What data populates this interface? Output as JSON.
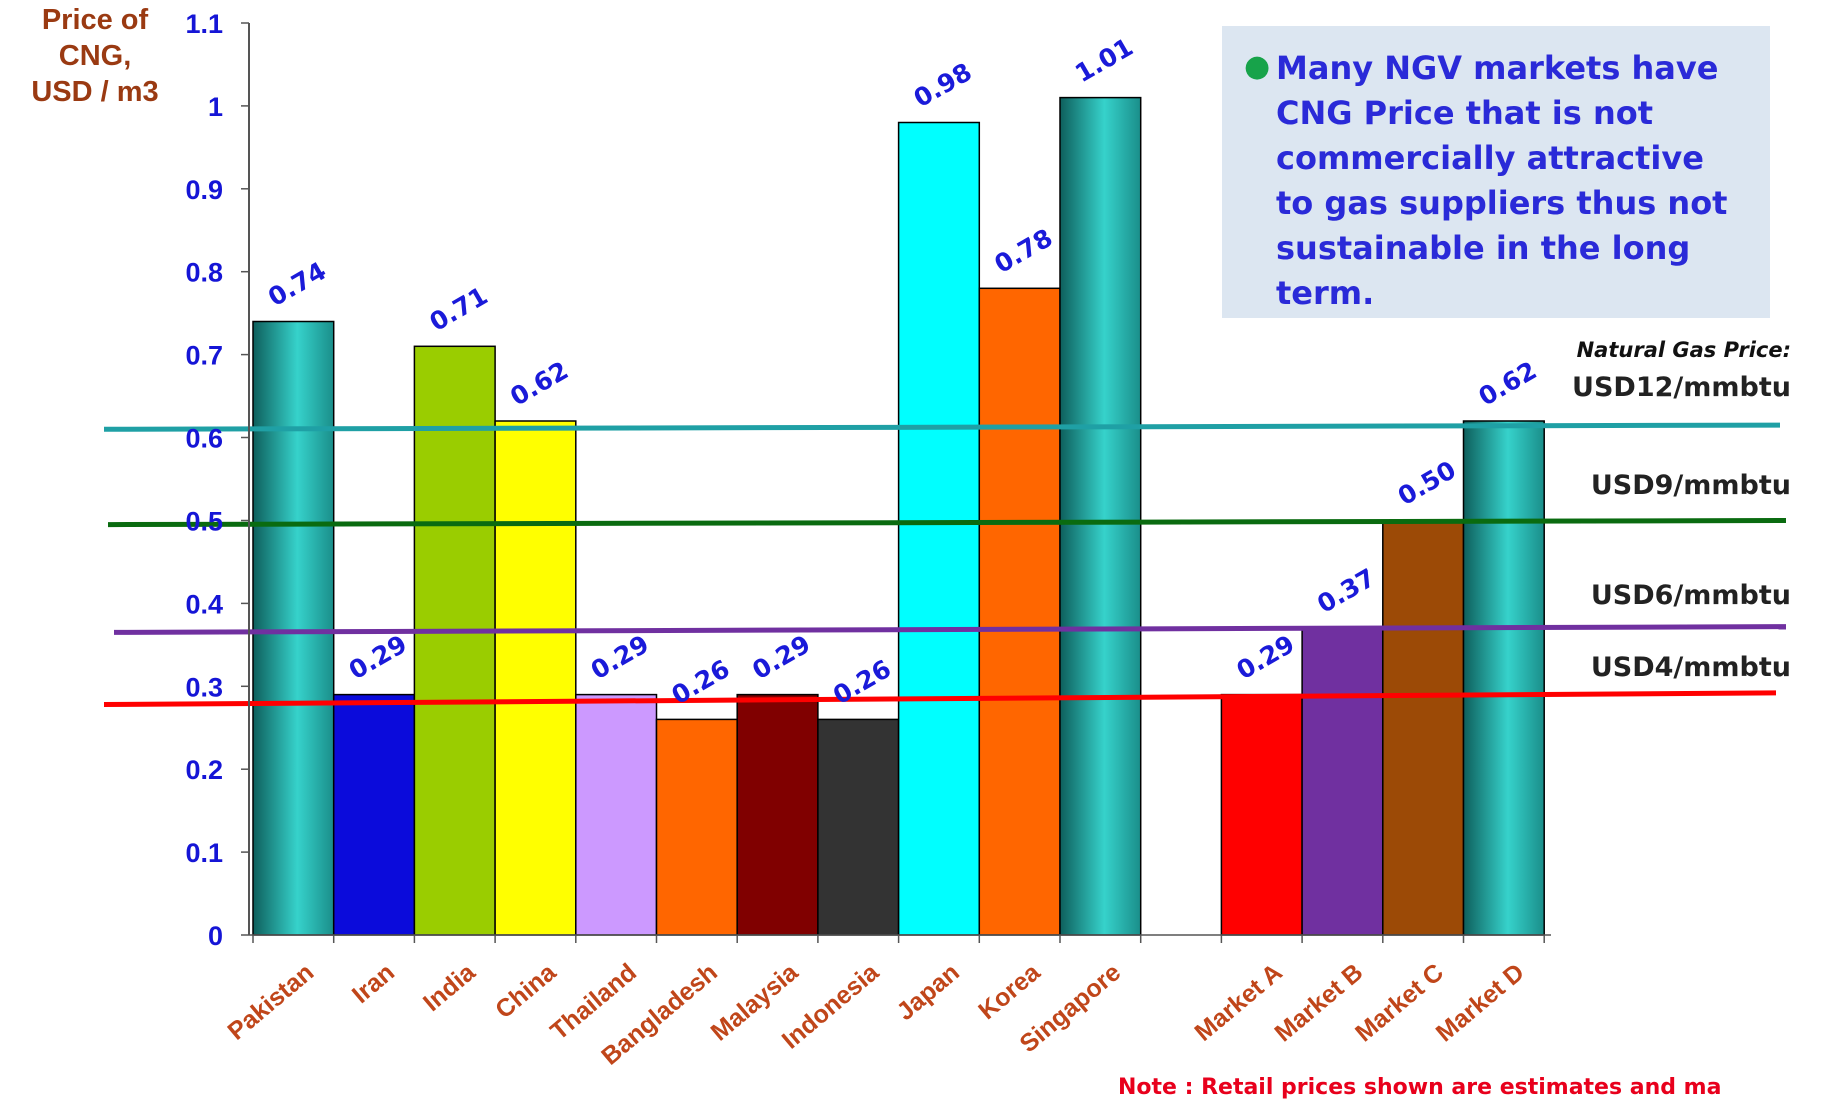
{
  "chart_data": {
    "type": "bar",
    "ylabel": "Price of\nCNG,\nUSD / m3",
    "ylim": [
      0,
      1.1
    ],
    "yticks": [
      "0",
      "0.1",
      "0.2",
      "0.3",
      "0.4",
      "0.5",
      "0.6",
      "0.7",
      "0.8",
      "0.9",
      "1",
      "1.1"
    ],
    "categories": [
      "Pakistan",
      "Iran",
      "India",
      "China",
      "Thailand",
      "Bangladesh",
      "Malaysia",
      "Indonesia",
      "Japan",
      "Korea",
      "Singapore",
      "",
      "Market A",
      "Market B",
      "Market C",
      "Market D"
    ],
    "values": [
      0.74,
      0.29,
      0.71,
      0.62,
      0.29,
      0.26,
      0.29,
      0.26,
      0.98,
      0.78,
      1.01,
      null,
      0.29,
      0.37,
      0.5,
      0.62
    ],
    "value_labels": [
      "0.74",
      "0.29",
      "0.71",
      "0.62",
      "0.29",
      "0.26",
      "0.29",
      "0.26",
      "0.98",
      "0.78",
      "1.01",
      "",
      "0.29",
      "0.37",
      "0.50",
      "0.62"
    ],
    "bar_colors": [
      "#2cb5b0",
      "#0b0bdb",
      "#9acd00",
      "#ffff00",
      "#cc99ff",
      "#ff6600",
      "#800000",
      "#333333",
      "#00ffff",
      "#ff6600",
      "#2cb5b0",
      "#ffffff",
      "#ff0000",
      "#7030a0",
      "#9c4a06",
      "#2cb5b0"
    ],
    "reference_lines": [
      {
        "label": "USD12/mmbtu",
        "sub_label": "Natural Gas Price:",
        "value_start": 0.61,
        "value_end": 0.615,
        "color": "#1fa0a5"
      },
      {
        "label": "USD9/mmbtu",
        "sub_label": "",
        "value_start": 0.495,
        "value_end": 0.5,
        "color": "#0a6b10"
      },
      {
        "label": "USD6/mmbtu",
        "sub_label": "",
        "value_start": 0.365,
        "value_end": 0.372,
        "color": "#7030a0"
      },
      {
        "label": "USD4/mmbtu",
        "sub_label": "",
        "value_start": 0.278,
        "value_end": 0.292,
        "color": "#ff0000"
      }
    ],
    "grid": false,
    "legend": "none"
  },
  "callout": {
    "text": "Many NGV markets have CNG Price that is not commercially attractive to gas suppliers thus not sustainable in the long term."
  },
  "note": "Note : Retail prices shown are estimates and ma",
  "colors": {
    "axis_text": "#1515d6",
    "value_label": "#1a1ad9",
    "ylabel": "#9a3a12",
    "category_label": "#c0461a"
  }
}
